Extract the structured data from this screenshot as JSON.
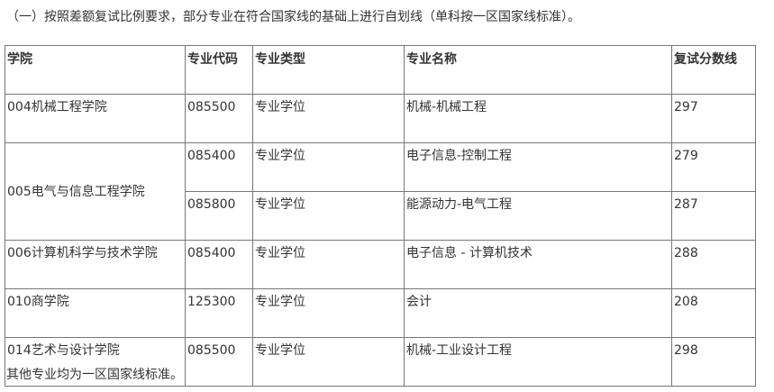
{
  "intro": "（一）按照差额复试比例要求，部分专业在符合国家线的基础上进行自划线（单科按一区国家线标准）。",
  "headers": [
    "学院",
    "专业代码",
    "专业类型",
    "专业名称",
    "复试分数线"
  ],
  "rows": [
    {
      "college": "004机械工程学院",
      "code": "085500",
      "type": "专业学位",
      "name": "机械-机械工程",
      "score": "297"
    },
    {
      "college": "005电气与信息工程学院",
      "code": "085400",
      "type": "专业学位",
      "name": "电子信息-控制工程",
      "score": "279"
    },
    {
      "code": "085800",
      "type": "专业学位",
      "name": "能源动力-电气工程",
      "score": "287"
    },
    {
      "college": "006计算机科学与技术学院",
      "code": "085400",
      "type": "专业学位",
      "name": "电子信息 - 计算机技术",
      "score": "288"
    },
    {
      "college": "010商学院",
      "code": "125300",
      "type": "专业学位",
      "name": "会计",
      "score": "208"
    },
    {
      "college": "014艺术与设计学院",
      "code": "085500",
      "type": "专业学位",
      "name": "机械-工业设计工程",
      "score": "298"
    }
  ],
  "footer": "其他专业均为一区国家线标准。"
}
